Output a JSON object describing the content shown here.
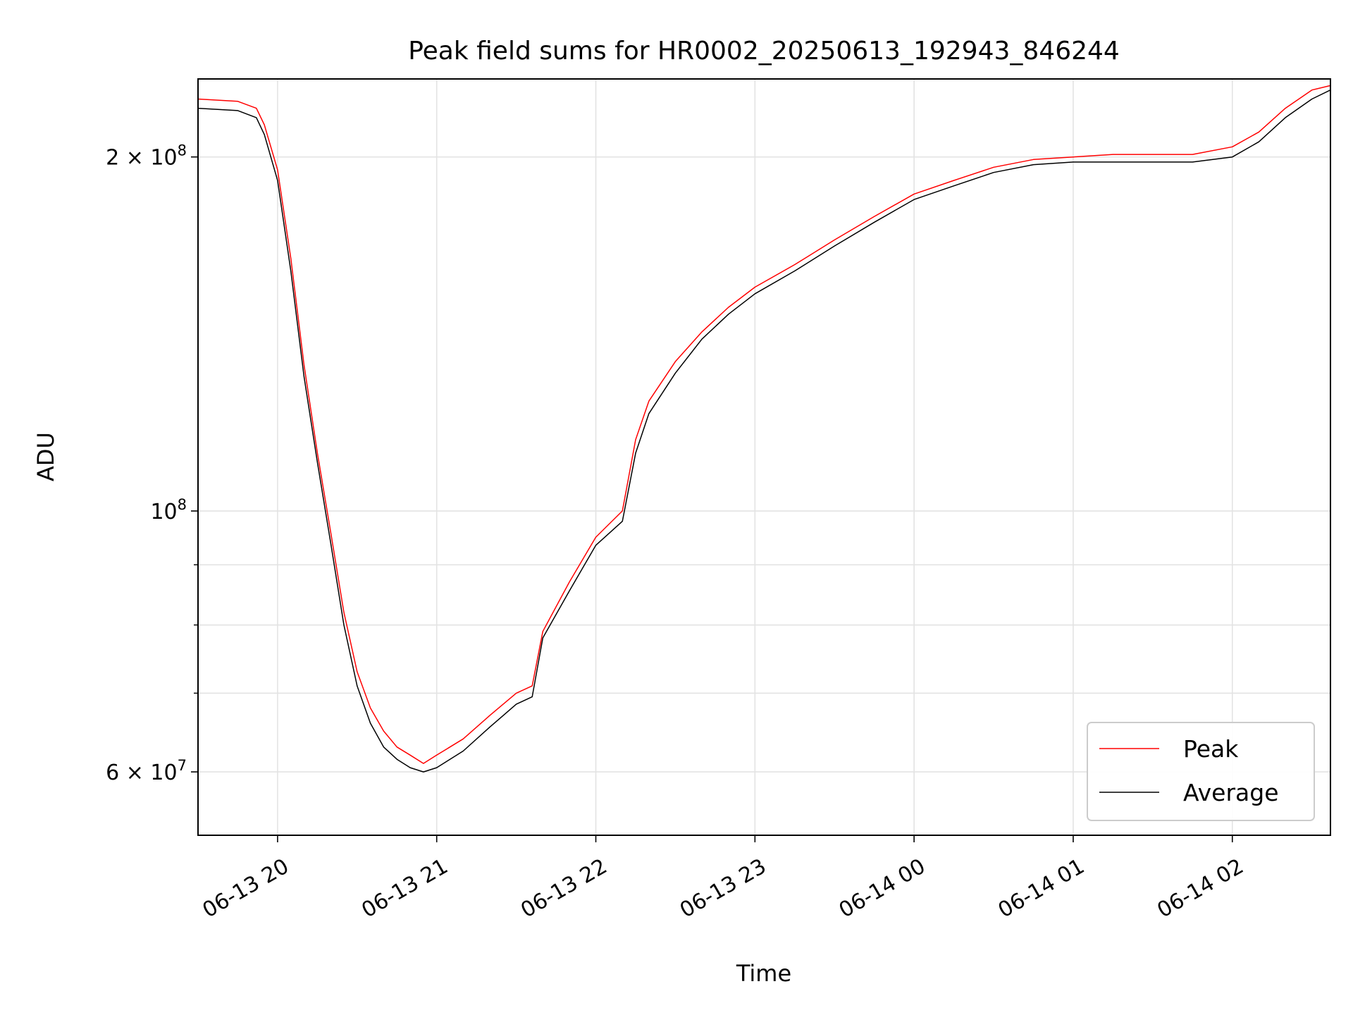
{
  "chart_data": {
    "type": "line",
    "title": "Peak field sums for HR0002_20250613_192943_846244",
    "xlabel": "Time",
    "ylabel": "ADU",
    "yscale": "log",
    "xlim": [
      "2025-06-13T19:30",
      "2025-06-14T02:37"
    ],
    "ylim": [
      53000000,
      233000000
    ],
    "grid": true,
    "legend_position": "lower right",
    "x_ticks": [
      {
        "value": "2025-06-13T20:00",
        "label": "06-13 20"
      },
      {
        "value": "2025-06-13T21:00",
        "label": "06-13 21"
      },
      {
        "value": "2025-06-13T22:00",
        "label": "06-13 22"
      },
      {
        "value": "2025-06-13T23:00",
        "label": "06-13 23"
      },
      {
        "value": "2025-06-14T00:00",
        "label": "06-14 00"
      },
      {
        "value": "2025-06-14T01:00",
        "label": "06-14 01"
      },
      {
        "value": "2025-06-14T02:00",
        "label": "06-14 02"
      }
    ],
    "y_major_ticks": [
      {
        "value": 60000000,
        "base": "6 × 10",
        "exp": "7"
      },
      {
        "value": 100000000,
        "base": "10",
        "exp": "8"
      },
      {
        "value": 200000000,
        "base": "2 × 10",
        "exp": "8"
      }
    ],
    "y_minor_ticks": [
      70000000,
      80000000,
      90000000
    ],
    "series": [
      {
        "name": "Peak",
        "color": "#ff0000",
        "x": [
          "2025-06-13T19:30",
          "2025-06-13T19:45",
          "2025-06-13T19:52",
          "2025-06-13T19:55",
          "2025-06-13T20:00",
          "2025-06-13T20:05",
          "2025-06-13T20:10",
          "2025-06-13T20:15",
          "2025-06-13T20:20",
          "2025-06-13T20:25",
          "2025-06-13T20:30",
          "2025-06-13T20:35",
          "2025-06-13T20:40",
          "2025-06-13T20:45",
          "2025-06-13T20:50",
          "2025-06-13T20:55",
          "2025-06-13T21:00",
          "2025-06-13T21:10",
          "2025-06-13T21:20",
          "2025-06-13T21:30",
          "2025-06-13T21:36",
          "2025-06-13T21:40",
          "2025-06-13T21:50",
          "2025-06-13T22:00",
          "2025-06-13T22:10",
          "2025-06-13T22:15",
          "2025-06-13T22:20",
          "2025-06-13T22:30",
          "2025-06-13T22:40",
          "2025-06-13T22:50",
          "2025-06-13T23:00",
          "2025-06-13T23:15",
          "2025-06-13T23:30",
          "2025-06-13T23:45",
          "2025-06-14T00:00",
          "2025-06-14T00:15",
          "2025-06-14T00:30",
          "2025-06-14T00:45",
          "2025-06-14T01:00",
          "2025-06-14T01:15",
          "2025-06-14T01:30",
          "2025-06-14T01:45",
          "2025-06-14T02:00",
          "2025-06-14T02:10",
          "2025-06-14T02:20",
          "2025-06-14T02:30",
          "2025-06-14T02:37"
        ],
        "values": [
          224000000,
          223000000,
          220000000,
          213000000,
          195000000,
          164000000,
          133000000,
          112000000,
          96000000,
          82000000,
          73000000,
          68000000,
          65000000,
          63000000,
          62000000,
          61000000,
          62000000,
          64000000,
          67000000,
          70000000,
          71000000,
          79000000,
          87000000,
          95000000,
          100000000,
          115000000,
          124000000,
          134000000,
          142000000,
          149000000,
          155000000,
          162000000,
          170000000,
          178000000,
          186000000,
          191000000,
          196000000,
          199000000,
          200000000,
          201000000,
          201000000,
          201000000,
          204000000,
          210000000,
          220000000,
          228000000,
          230000000
        ]
      },
      {
        "name": "Average",
        "color": "#000000",
        "x": [
          "2025-06-13T19:30",
          "2025-06-13T19:45",
          "2025-06-13T19:52",
          "2025-06-13T19:55",
          "2025-06-13T20:00",
          "2025-06-13T20:05",
          "2025-06-13T20:10",
          "2025-06-13T20:15",
          "2025-06-13T20:20",
          "2025-06-13T20:25",
          "2025-06-13T20:30",
          "2025-06-13T20:35",
          "2025-06-13T20:40",
          "2025-06-13T20:45",
          "2025-06-13T20:50",
          "2025-06-13T20:55",
          "2025-06-13T21:00",
          "2025-06-13T21:10",
          "2025-06-13T21:20",
          "2025-06-13T21:30",
          "2025-06-13T21:36",
          "2025-06-13T21:40",
          "2025-06-13T21:50",
          "2025-06-13T22:00",
          "2025-06-13T22:10",
          "2025-06-13T22:15",
          "2025-06-13T22:20",
          "2025-06-13T22:30",
          "2025-06-13T22:40",
          "2025-06-13T22:50",
          "2025-06-13T23:00",
          "2025-06-13T23:15",
          "2025-06-13T23:30",
          "2025-06-13T23:45",
          "2025-06-14T00:00",
          "2025-06-14T00:15",
          "2025-06-14T00:30",
          "2025-06-14T00:45",
          "2025-06-14T01:00",
          "2025-06-14T01:15",
          "2025-06-14T01:30",
          "2025-06-14T01:45",
          "2025-06-14T02:00",
          "2025-06-14T02:10",
          "2025-06-14T02:20",
          "2025-06-14T02:30",
          "2025-06-14T02:37"
        ],
        "values": [
          220000000,
          219000000,
          216000000,
          209000000,
          191000000,
          160000000,
          130000000,
          110000000,
          94000000,
          80000000,
          71000000,
          66000000,
          63000000,
          61500000,
          60500000,
          60000000,
          60500000,
          62500000,
          65500000,
          68500000,
          69500000,
          78000000,
          85500000,
          93500000,
          98000000,
          112000000,
          121000000,
          131000000,
          140000000,
          147000000,
          153000000,
          160000000,
          168000000,
          176000000,
          184000000,
          189000000,
          194000000,
          197000000,
          198000000,
          198000000,
          198000000,
          198000000,
          200000000,
          206000000,
          216000000,
          224000000,
          228000000
        ]
      }
    ]
  }
}
